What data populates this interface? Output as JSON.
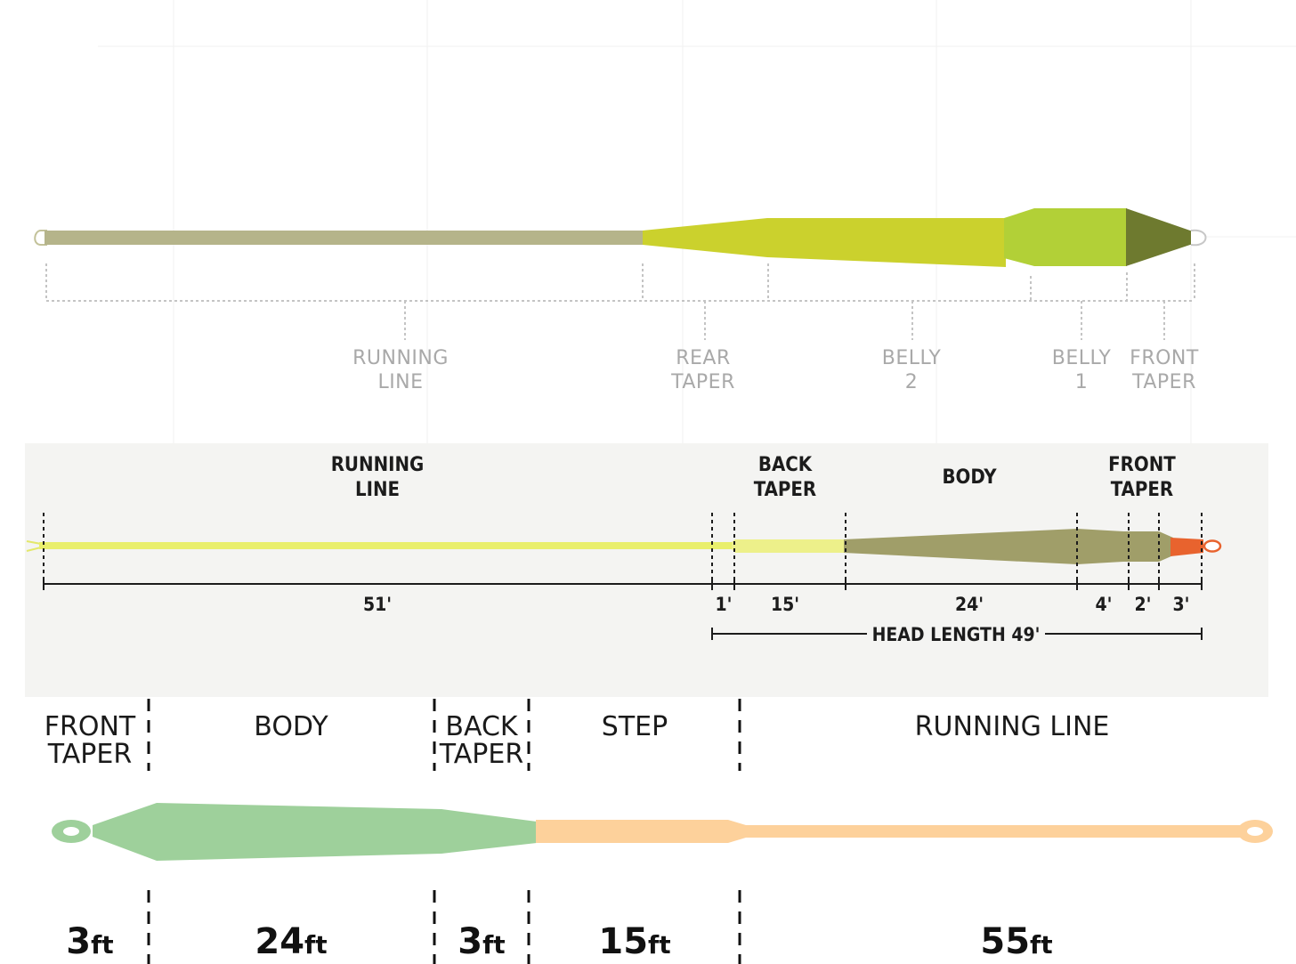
{
  "diagram1": {
    "labels": [
      {
        "line1": "RUNNING",
        "line2": "LINE"
      },
      {
        "line1": "REAR",
        "line2": "TAPER"
      },
      {
        "line1": "BELLY",
        "line2": "2"
      },
      {
        "line1": "BELLY",
        "line2": "1"
      },
      {
        "line1": "FRONT",
        "line2": "TAPER"
      }
    ],
    "colors": {
      "running_line": "#b5b48a",
      "taper_body": "#cbd12d",
      "belly1": "#b2d037",
      "front_taper": "#6e7a2f",
      "guides": "#c4c4c4"
    }
  },
  "diagram2": {
    "labels": [
      {
        "line1": "RUNNING",
        "line2": "LINE"
      },
      {
        "line1": "BACK",
        "line2": "TAPER"
      },
      {
        "line1": "BODY",
        "line2": ""
      },
      {
        "line1": "FRONT",
        "line2": "TAPER"
      }
    ],
    "lengths": [
      "51'",
      "1'",
      "15'",
      "24'",
      "4'",
      "2'",
      "3'"
    ],
    "head_length": "HEAD LENGTH 49'",
    "colors": {
      "running_line": "#e9ef6c",
      "back_taper": "#edf08a",
      "body": "#a09e69",
      "tip": "#e8632e",
      "ink": "#1c1c1c"
    }
  },
  "diagram3": {
    "labels": [
      {
        "line1": "FRONT",
        "line2": "TAPER"
      },
      {
        "line1": "BODY",
        "line2": ""
      },
      {
        "line1": "BACK",
        "line2": "TAPER"
      },
      {
        "line1": "STEP",
        "line2": ""
      },
      {
        "line1": "RUNNING LINE",
        "line2": ""
      }
    ],
    "lengths": [
      {
        "num": "3",
        "unit": "ft"
      },
      {
        "num": "24",
        "unit": "ft"
      },
      {
        "num": "3",
        "unit": "ft"
      },
      {
        "num": "15",
        "unit": "ft"
      },
      {
        "num": "55",
        "unit": "ft"
      }
    ],
    "colors": {
      "head": "#9ed09b",
      "running_line": "#fdd19b",
      "ink": "#111111"
    }
  }
}
